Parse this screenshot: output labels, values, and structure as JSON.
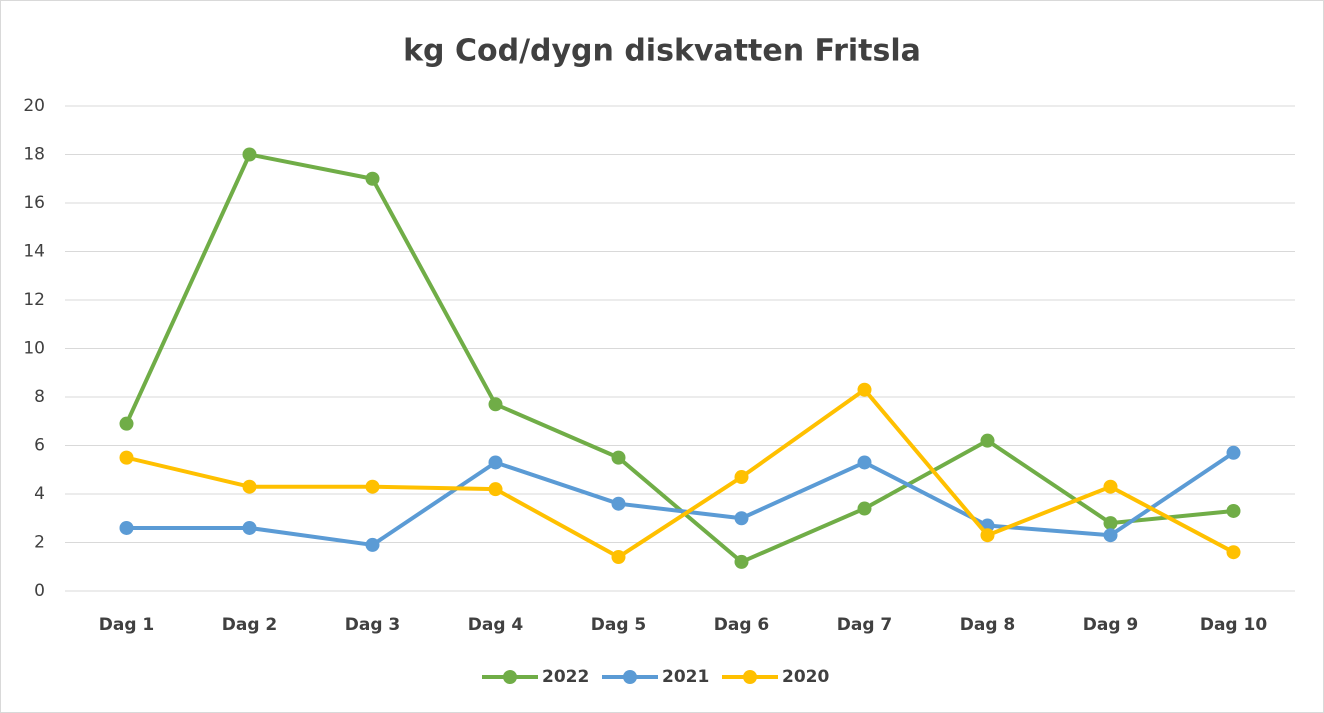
{
  "chart_data": {
    "type": "line",
    "title": "kg Cod/dygn diskvatten Fritsla",
    "categories": [
      "Dag 1",
      "Dag 2",
      "Dag 3",
      "Dag 4",
      "Dag 5",
      "Dag 6",
      "Dag 7",
      "Dag 8",
      "Dag 9",
      "Dag 10"
    ],
    "series": [
      {
        "name": "2022",
        "color": "#70ad47",
        "values": [
          6.9,
          18,
          17,
          7.7,
          5.5,
          1.2,
          3.4,
          6.2,
          2.8,
          3.3
        ]
      },
      {
        "name": "2021",
        "color": "#5b9bd5",
        "values": [
          2.6,
          2.6,
          1.9,
          5.3,
          3.6,
          3.0,
          5.3,
          2.7,
          2.3,
          5.7
        ]
      },
      {
        "name": "2020",
        "color": "#ffc000",
        "values": [
          5.5,
          4.3,
          4.3,
          4.2,
          1.4,
          4.7,
          8.3,
          2.3,
          4.3,
          1.6
        ]
      }
    ],
    "ylim": [
      0,
      20
    ],
    "yticks": [
      0,
      2,
      4,
      6,
      8,
      10,
      12,
      14,
      16,
      18,
      20
    ],
    "grid": true,
    "legend": "bottom"
  }
}
